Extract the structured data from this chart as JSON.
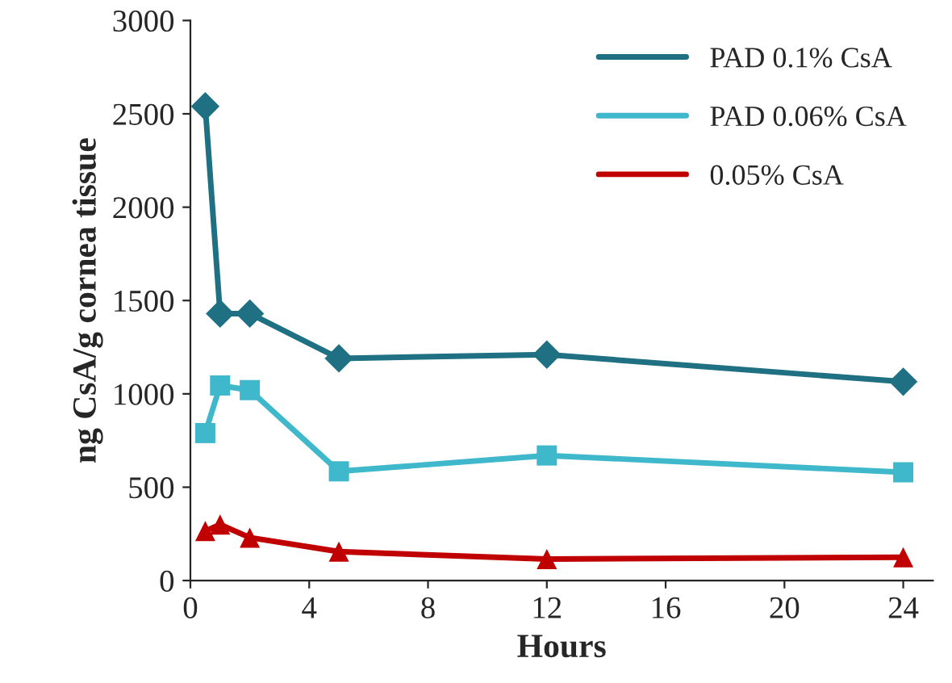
{
  "chart_data": {
    "type": "line",
    "xlabel": "Hours",
    "ylabel": "ng CsA/g cornea tissue",
    "x": [
      0.5,
      1,
      2,
      5,
      12,
      24
    ],
    "series": [
      {
        "name": "PAD 0.1% CsA",
        "color": "#1e7082",
        "marker": "diamond",
        "values": [
          2540,
          1430,
          1430,
          1190,
          1210,
          1065
        ]
      },
      {
        "name": "PAD 0.06% CsA",
        "color": "#3fb8cc",
        "marker": "square",
        "values": [
          790,
          1045,
          1020,
          585,
          670,
          580
        ]
      },
      {
        "name": "0.05% CsA",
        "color": "#c00000",
        "marker": "triangle",
        "values": [
          265,
          300,
          230,
          155,
          115,
          125
        ]
      }
    ],
    "xlim": [
      0,
      25
    ],
    "xticks": [
      0,
      4,
      8,
      12,
      16,
      20,
      24
    ],
    "ylim": [
      0,
      3000
    ],
    "yticks": [
      0,
      500,
      1000,
      1500,
      2000,
      2500,
      3000
    ],
    "grid": false,
    "legend": "top right",
    "line_style": "solid"
  }
}
